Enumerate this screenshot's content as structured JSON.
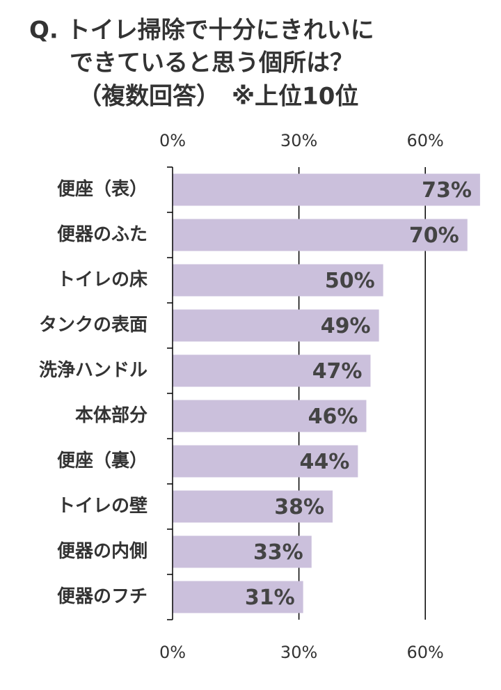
{
  "chart_data": {
    "type": "hbar",
    "title": [
      "Q. トイレ掃除で十分にきれいに",
      "できていると思う個所は？",
      "（複数回答）　※上位10位"
    ],
    "categories": [
      "便座（表）",
      "便器のふた",
      "トイレの床",
      "タンクの表面",
      "洗浄ハンドル",
      "本体部分",
      "便座（裏）",
      "トイレの壁",
      "便器の内側",
      "便器のフチ"
    ],
    "values": [
      73,
      70,
      50,
      49,
      47,
      46,
      44,
      38,
      33,
      31
    ],
    "value_labels": [
      "73%",
      "70%",
      "50%",
      "49%",
      "47%",
      "46%",
      "44%",
      "38%",
      "33%",
      "31%"
    ],
    "color": "#cbc0dc",
    "xlim": [
      0,
      75
    ],
    "xticks": [
      {
        "value": 0,
        "label": "0%"
      },
      {
        "value": 30,
        "label": "30%"
      },
      {
        "value": 60,
        "label": "60%"
      }
    ],
    "grid": true
  }
}
